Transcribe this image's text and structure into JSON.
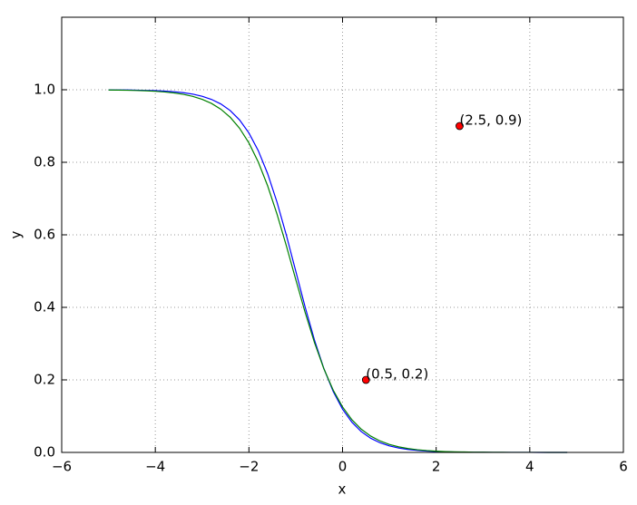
{
  "chart_data": {
    "type": "line",
    "xlabel": "x",
    "ylabel": "y",
    "xlim": [
      -6,
      6
    ],
    "ylim": [
      0,
      1.2
    ],
    "xticks": [
      {
        "value": -6,
        "label": "−6"
      },
      {
        "value": -4,
        "label": "−4"
      },
      {
        "value": -2,
        "label": "−2"
      },
      0,
      2,
      4,
      6
    ],
    "yticks": [
      {
        "value": 0,
        "label": "0.0"
      },
      0.2,
      0.4,
      0.6,
      0.8,
      {
        "value": 1,
        "label": "1.0"
      }
    ],
    "grid": true,
    "x": [
      -5,
      -4.8,
      -4.6,
      -4.4,
      -4.2,
      -4,
      -3.8,
      -3.6,
      -3.4,
      -3.2,
      -3,
      -2.8,
      -2.6,
      -2.4,
      -2.2,
      -2,
      -1.8,
      -1.6,
      -1.4,
      -1.2,
      -1,
      -0.8,
      -0.6,
      -0.4,
      -0.2,
      0,
      0.2,
      0.4,
      0.6,
      0.8,
      1,
      1.2,
      1.4,
      1.6,
      1.8,
      2,
      2.2,
      2.4,
      2.6,
      2.8,
      3,
      3.2,
      3.4,
      3.6,
      3.8,
      4,
      4.2,
      4.4,
      4.6,
      4.8
    ],
    "series": [
      {
        "color": "#0000ff",
        "values": [
          0.9997,
          0.9995,
          0.9993,
          0.9989,
          0.9983,
          0.9975,
          0.9963,
          0.9945,
          0.9918,
          0.9879,
          0.982,
          0.9734,
          0.9608,
          0.9427,
          0.9168,
          0.8808,
          0.832,
          0.7685,
          0.69,
          0.5987,
          0.5,
          0.4013,
          0.31,
          0.2315,
          0.168,
          0.1192,
          0.0832,
          0.0573,
          0.0392,
          0.0266,
          0.018,
          0.0121,
          0.0082,
          0.0055,
          0.0037,
          0.0025,
          0.0017,
          0.0011,
          0.0007,
          0.0005,
          0.0003,
          0.0002,
          0.0002,
          0.0001,
          0.0001,
          0.0001,
          0,
          0,
          0,
          0
        ]
      },
      {
        "color": "#008000",
        "values": [
          0.9993,
          0.999,
          0.9986,
          0.998,
          0.9971,
          0.9958,
          0.9939,
          0.9912,
          0.9873,
          0.9817,
          0.9736,
          0.9623,
          0.9463,
          0.9241,
          0.8938,
          0.8533,
          0.8006,
          0.735,
          0.657,
          0.5695,
          0.4769,
          0.3864,
          0.3031,
          0.231,
          0.1718,
          0.1254,
          0.0901,
          0.064,
          0.0451,
          0.0316,
          0.022,
          0.0153,
          0.0106,
          0.0074,
          0.0051,
          0.0035,
          0.0024,
          0.0017,
          0.0012,
          0.0008,
          0.0006,
          0.0004,
          0.0003,
          0.0002,
          0.0001,
          0.0001,
          0.0001,
          0,
          0,
          0
        ]
      }
    ],
    "scatter": {
      "color": "#ff0000",
      "x": [
        0.5,
        2.5
      ],
      "y": [
        0.2,
        0.9
      ],
      "labels": [
        "(0.5, 0.2)",
        "(2.5, 0.9)"
      ]
    }
  }
}
